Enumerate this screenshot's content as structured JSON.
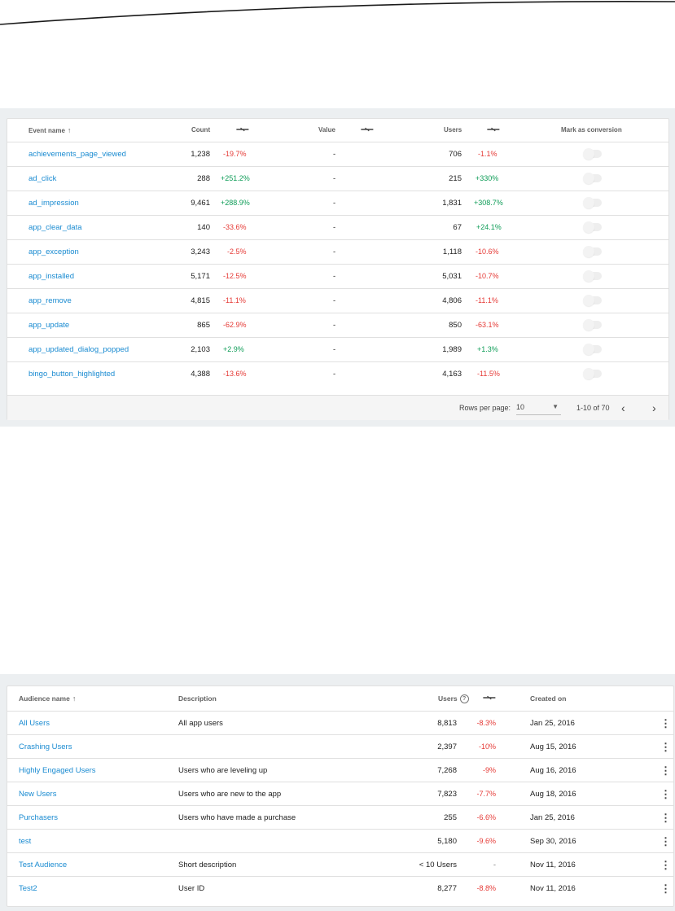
{
  "events": {
    "header": {
      "event_name": "Event name",
      "count": "Count",
      "value": "Value",
      "users": "Users",
      "mark_as_conversion": "Mark as conversion"
    },
    "rows": [
      {
        "name": "achievements_page_viewed",
        "count": "1,238",
        "count_change": "-19.7%",
        "value": "-",
        "users": "706",
        "users_change": "-1.1%",
        "conversion": false
      },
      {
        "name": "ad_click",
        "count": "288",
        "count_change": "+251.2%",
        "value": "-",
        "users": "215",
        "users_change": "+330%",
        "conversion": false
      },
      {
        "name": "ad_impression",
        "count": "9,461",
        "count_change": "+288.9%",
        "value": "-",
        "users": "1,831",
        "users_change": "+308.7%",
        "conversion": false
      },
      {
        "name": "app_clear_data",
        "count": "140",
        "count_change": "-33.6%",
        "value": "-",
        "users": "67",
        "users_change": "+24.1%",
        "conversion": false
      },
      {
        "name": "app_exception",
        "count": "3,243",
        "count_change": "-2.5%",
        "value": "-",
        "users": "1,118",
        "users_change": "-10.6%",
        "conversion": false
      },
      {
        "name": "app_installed",
        "count": "5,171",
        "count_change": "-12.5%",
        "value": "-",
        "users": "5,031",
        "users_change": "-10.7%",
        "conversion": false
      },
      {
        "name": "app_remove",
        "count": "4,815",
        "count_change": "-11.1%",
        "value": "-",
        "users": "4,806",
        "users_change": "-11.1%",
        "conversion": false
      },
      {
        "name": "app_update",
        "count": "865",
        "count_change": "-62.9%",
        "value": "-",
        "users": "850",
        "users_change": "-63.1%",
        "conversion": false
      },
      {
        "name": "app_updated_dialog_popped",
        "count": "2,103",
        "count_change": "+2.9%",
        "value": "-",
        "users": "1,989",
        "users_change": "+1.3%",
        "conversion": false
      },
      {
        "name": "bingo_button_highlighted",
        "count": "4,388",
        "count_change": "-13.6%",
        "value": "-",
        "users": "4,163",
        "users_change": "-11.5%",
        "conversion": false
      }
    ],
    "footer": {
      "rows_per_page_label": "Rows per page:",
      "rows_per_page_value": "10",
      "range": "1-10 of 70"
    }
  },
  "audiences": {
    "header": {
      "audience_name": "Audience name",
      "description": "Description",
      "users": "Users",
      "created_on": "Created on"
    },
    "rows": [
      {
        "name": "All Users",
        "description": "All app users",
        "users": "8,813",
        "change": "-8.3%",
        "created": "Jan 25, 2016"
      },
      {
        "name": "Crashing Users",
        "description": "",
        "users": "2,397",
        "change": "-10%",
        "created": "Aug 15, 2016"
      },
      {
        "name": "Highly Engaged Users",
        "description": "Users who are leveling up",
        "users": "7,268",
        "change": "-9%",
        "created": "Aug 16, 2016"
      },
      {
        "name": "New Users",
        "description": "Users who are new to the app",
        "users": "7,823",
        "change": "-7.7%",
        "created": "Aug 18, 2016"
      },
      {
        "name": "Purchasers",
        "description": "Users who have made a purchase",
        "users": "255",
        "change": "-6.6%",
        "created": "Jan 25, 2016"
      },
      {
        "name": "test",
        "description": "",
        "users": "5,180",
        "change": "-9.6%",
        "created": "Sep 30, 2016"
      },
      {
        "name": "Test Audience",
        "description": "Short description",
        "users": "< 10 Users",
        "change": "-",
        "created": "Nov 11, 2016"
      },
      {
        "name": "Test2",
        "description": "User ID",
        "users": "8,277",
        "change": "-8.8%",
        "created": "Nov 11, 2016"
      }
    ]
  },
  "colors": {
    "link": "#1a8bd1",
    "negative": "#e53935",
    "positive": "#0f9d58",
    "panel_background": "#eceff1"
  },
  "icons": {
    "sort": "arrow-up-icon",
    "compare": "compare-arrows-icon",
    "help": "help-circle-icon",
    "more": "more-vert-icon",
    "dropdown": "caret-down-icon",
    "prev": "chevron-left-icon",
    "next": "chevron-right-icon"
  }
}
